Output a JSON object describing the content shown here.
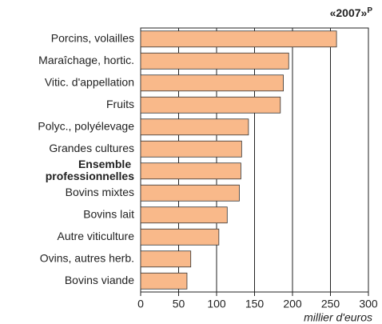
{
  "chart_data": {
    "type": "barh",
    "title": "«2007»",
    "title_note": "P",
    "categories": [
      "Porcins, volailles",
      "Maraîchage, hortic.",
      "Vitic. d'appellation",
      "Fruits",
      "Polyc., polyélevage",
      "Grandes cultures",
      "Ensemble professionnelles",
      "Bovins mixtes",
      "Bovins lait",
      "Autre viticulture",
      "Ovins, autres herb.",
      "Bovins viande"
    ],
    "values": [
      258,
      195,
      188,
      184,
      142,
      133,
      132,
      130,
      114,
      103,
      66,
      61
    ],
    "highlight": 6,
    "color": "#f9b98a",
    "xlim": [
      0,
      300
    ],
    "xticks": [
      0,
      50,
      100,
      150,
      200,
      250,
      300
    ],
    "xlabel": "millier d'euros",
    "grid": true
  }
}
